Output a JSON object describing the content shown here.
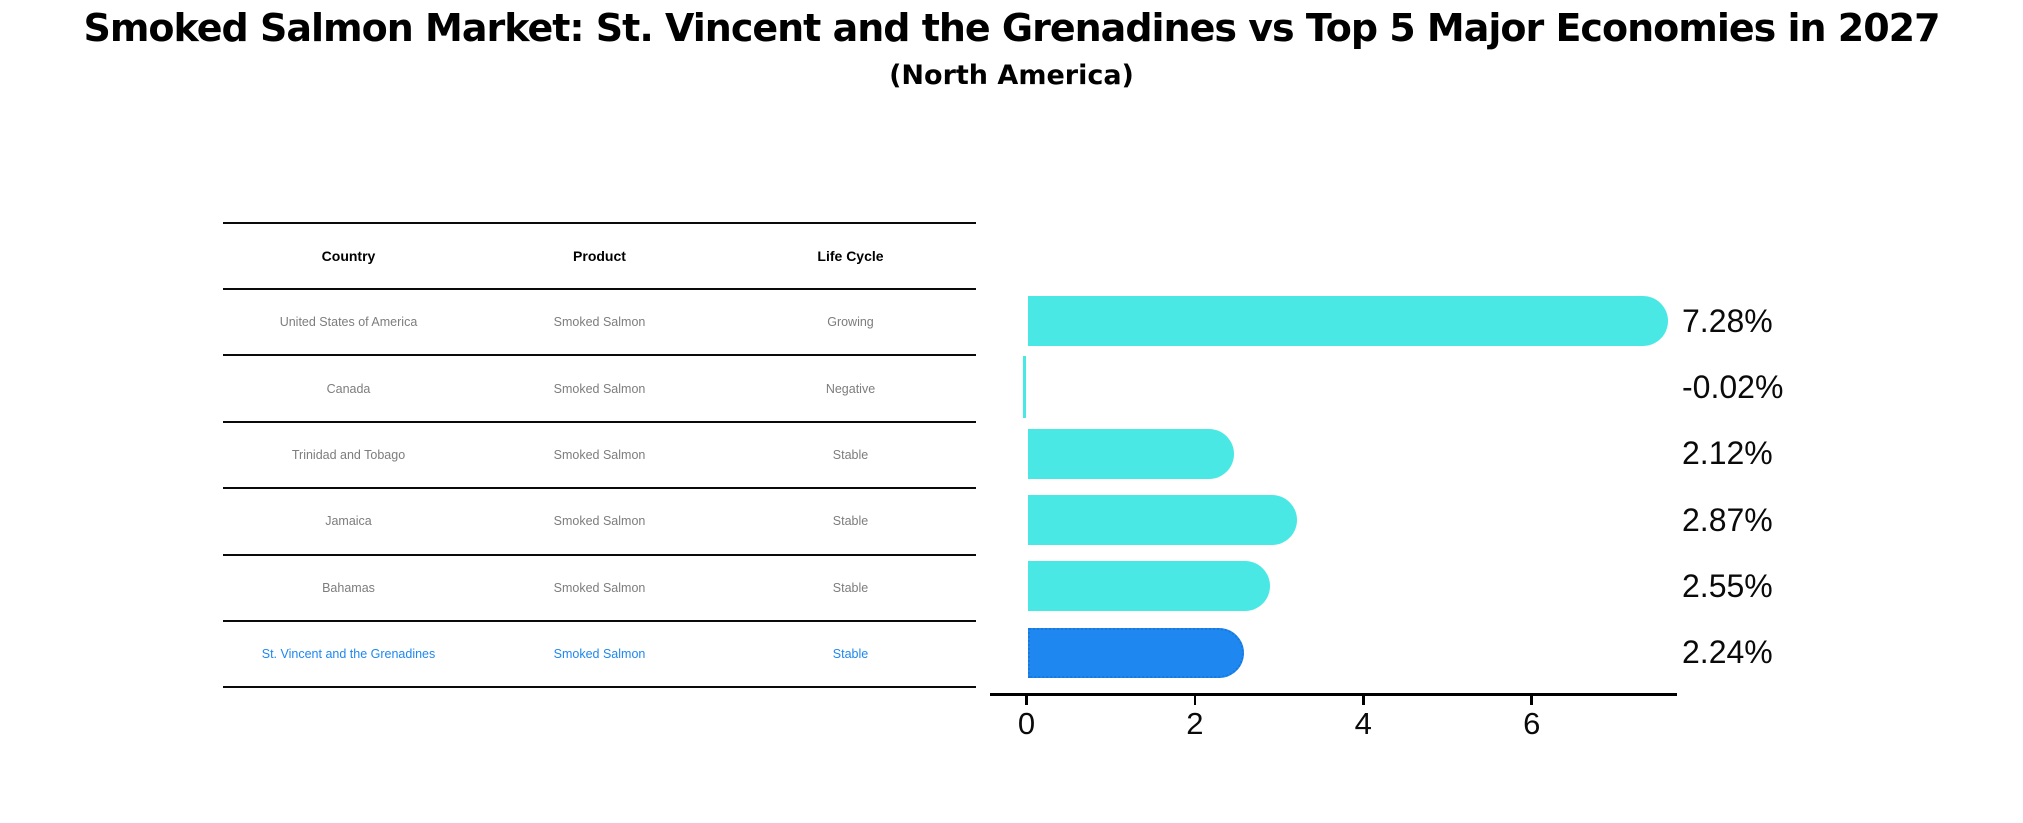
{
  "title": "Smoked Salmon Market: St. Vincent and the Grenadines vs Top 5 Major Economies in 2027",
  "subtitle": "(North America)",
  "table": {
    "headers": [
      "Country",
      "Product",
      "Life Cycle"
    ],
    "highlight_row": 5,
    "rows": [
      {
        "country": "United States of America",
        "product": "Smoked Salmon",
        "life_cycle": "Growing"
      },
      {
        "country": "Canada",
        "product": "Smoked Salmon",
        "life_cycle": "Negative"
      },
      {
        "country": "Trinidad and Tobago",
        "product": "Smoked Salmon",
        "life_cycle": "Stable"
      },
      {
        "country": "Jamaica",
        "product": "Smoked Salmon",
        "life_cycle": "Stable"
      },
      {
        "country": "Bahamas",
        "product": "Smoked Salmon",
        "life_cycle": "Stable"
      },
      {
        "country": "St. Vincent and the Grenadines",
        "product": "Smoked Salmon",
        "life_cycle": "Stable"
      }
    ]
  },
  "chart_data": {
    "type": "bar",
    "orientation": "horizontal",
    "title": "Smoked Salmon Market: St. Vincent and the Grenadines vs Top 5 Major Economies in 2027 (North America)",
    "categories": [
      "United States of America",
      "Canada",
      "Trinidad and Tobago",
      "Jamaica",
      "Bahamas",
      "St. Vincent and the Grenadines"
    ],
    "values": [
      7.28,
      -0.02,
      2.12,
      2.87,
      2.55,
      2.24
    ],
    "labels": [
      "7.28%",
      "-0.02%",
      "2.12%",
      "2.87%",
      "2.55%",
      "2.24%"
    ],
    "xticks": [
      0,
      2,
      4,
      6
    ],
    "xtick_labels": [
      "0",
      "2",
      "4",
      "6"
    ],
    "xlim": [
      -0.45,
      7.7
    ],
    "grid": false,
    "legend": false,
    "bar_color": "#4ae8e4",
    "highlight_color": "#1e87f0",
    "highlight_border": "#1778dd",
    "highlight_index": 5
  }
}
